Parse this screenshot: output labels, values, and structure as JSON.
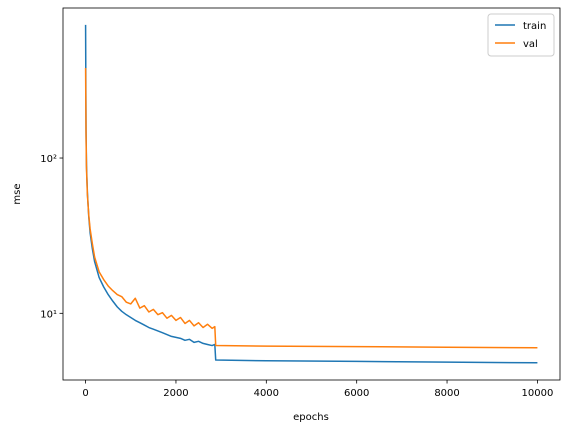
{
  "chart_data": {
    "type": "line",
    "xlabel": "epochs",
    "ylabel": "mse",
    "yscale": "log",
    "legend": "upper right",
    "x": [
      0,
      10,
      20,
      40,
      70,
      100,
      150,
      200,
      300,
      400,
      500,
      600,
      700,
      800,
      900,
      1000,
      1100,
      1200,
      1300,
      1400,
      1500,
      1600,
      1700,
      1800,
      1900,
      2000,
      2100,
      2200,
      2300,
      2400,
      2500,
      2600,
      2700,
      2800,
      2860,
      2880,
      4000,
      6000,
      8000,
      10000
    ],
    "series": [
      {
        "name": "train",
        "color": "#1f77b4",
        "values": [
          720,
          150,
          90,
          60,
          42,
          33,
          26,
          21.5,
          17,
          14.8,
          13.2,
          12,
          11,
          10.3,
          9.8,
          9.4,
          9,
          8.7,
          8.4,
          8.1,
          7.9,
          7.7,
          7.5,
          7.3,
          7.1,
          7,
          6.9,
          6.7,
          6.8,
          6.5,
          6.6,
          6.4,
          6.3,
          6.2,
          6.3,
          5.0,
          4.95,
          4.9,
          4.85,
          4.8
        ]
      },
      {
        "name": "val",
        "color": "#ff7f0e",
        "values": [
          380,
          140,
          85,
          58,
          43,
          35,
          28,
          23,
          18.5,
          16.5,
          15,
          14,
          13.2,
          12.8,
          11.8,
          11.5,
          12.5,
          10.8,
          11.2,
          10.2,
          10.6,
          9.8,
          10.1,
          9.3,
          9.7,
          9,
          9.4,
          8.6,
          9,
          8.3,
          8.7,
          8.1,
          8.5,
          8,
          8.2,
          6.2,
          6.15,
          6.1,
          6.05,
          6.0
        ]
      }
    ],
    "xlim": [
      -500,
      10500
    ],
    "xticks": [
      0,
      2000,
      4000,
      6000,
      8000,
      10000
    ],
    "ylim": [
      3.72,
      925
    ],
    "yticks": [
      {
        "value": 10,
        "label": "10¹"
      },
      {
        "value": 100,
        "label": "10²"
      }
    ]
  }
}
